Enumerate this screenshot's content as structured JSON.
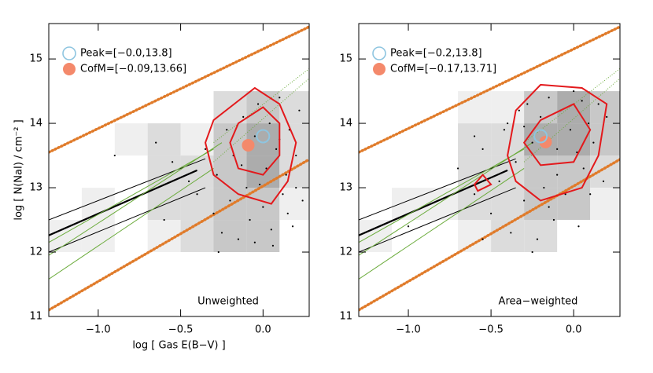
{
  "chart_data": [
    {
      "type": "scatter",
      "xlabel": "log [ Gas E(B−V) ]",
      "ylabel": "log [ N(NaI) / cm⁻² ]",
      "panel_label": "Unweighted",
      "xlim": [
        -1.3,
        0.28
      ],
      "ylim": [
        11,
        15.55
      ],
      "xticks": [
        {
          "value": -1.0,
          "label": "−1.0"
        },
        {
          "value": -0.5,
          "label": "−0.5"
        },
        {
          "value": 0.0,
          "label": "0.0"
        }
      ],
      "yticks": [
        11,
        12,
        13,
        14,
        15
      ],
      "shades": [
        "#efefef",
        "#dcdcdc",
        "#c8c8c8",
        "#acacac"
      ],
      "cells": [
        [
          -0.9,
          13.5,
          1
        ],
        [
          -0.7,
          13.5,
          2
        ],
        [
          -0.7,
          13.0,
          2
        ],
        [
          -0.7,
          12.5,
          2
        ],
        [
          -0.7,
          12.0,
          1
        ],
        [
          -1.1,
          12.5,
          1
        ],
        [
          -0.5,
          13.0,
          2
        ],
        [
          -0.5,
          12.5,
          2
        ],
        [
          -0.5,
          12.0,
          2
        ],
        [
          -0.5,
          13.5,
          1
        ],
        [
          -0.3,
          12.0,
          3
        ],
        [
          -0.3,
          12.5,
          3
        ],
        [
          -0.3,
          13.0,
          3
        ],
        [
          -0.3,
          13.5,
          3
        ],
        [
          -0.3,
          14.0,
          2
        ],
        [
          -0.1,
          12.0,
          3
        ],
        [
          -0.1,
          12.5,
          3
        ],
        [
          -0.1,
          13.0,
          4
        ],
        [
          -0.1,
          13.5,
          4
        ],
        [
          -0.1,
          14.0,
          3
        ],
        [
          0.1,
          12.5,
          1
        ],
        [
          0.1,
          13.0,
          2
        ],
        [
          0.1,
          13.5,
          2
        ],
        [
          0.1,
          14.0,
          2
        ],
        [
          -1.3,
          12.0,
          1
        ],
        [
          -1.1,
          12.0,
          1
        ]
      ],
      "lines": [
        {
          "color": "#e07b2a",
          "style": "dotted",
          "x": [
            -1.3,
            0.28
          ],
          "y": [
            13.55,
            15.5
          ]
        },
        {
          "color": "#e07b2a",
          "style": "dotted",
          "x": [
            -1.3,
            0.28
          ],
          "y": [
            11.1,
            13.44
          ]
        },
        {
          "color": "#000000",
          "style": "thick",
          "x": [
            -1.3,
            -0.4
          ],
          "y": [
            12.26,
            13.27
          ]
        },
        {
          "color": "#000000",
          "style": "thin",
          "x": [
            -1.3,
            -0.35
          ],
          "y": [
            12.5,
            13.45
          ]
        },
        {
          "color": "#000000",
          "style": "thin",
          "x": [
            -1.3,
            -0.35
          ],
          "y": [
            12.0,
            13.0
          ]
        },
        {
          "color": "#6aab3a",
          "style": "thin",
          "x": [
            -1.3,
            -0.3
          ],
          "y": [
            11.58,
            13.3
          ]
        },
        {
          "color": "#6aab3a",
          "style": "thin",
          "x": [
            -1.3,
            -0.25
          ],
          "y": [
            11.95,
            13.7
          ]
        },
        {
          "color": "#6aab3a",
          "style": "thin",
          "x": [
            -1.3,
            -0.3
          ],
          "y": [
            12.15,
            13.6
          ]
        },
        {
          "color": "#6aab3a",
          "style": "dotted-thin",
          "x": [
            -0.3,
            0.28
          ],
          "y": [
            13.7,
            14.85
          ]
        },
        {
          "color": "#6aab3a",
          "style": "dotted-thin",
          "x": [
            -0.3,
            0.28
          ],
          "y": [
            13.4,
            14.7
          ]
        }
      ],
      "points": {
        "color": "#000000",
        "x": [
          -0.55,
          -0.45,
          -0.4,
          -0.35,
          -0.3,
          -0.28,
          -0.25,
          -0.22,
          -0.2,
          -0.18,
          -0.15,
          -0.12,
          -0.1,
          -0.08,
          -0.05,
          -0.03,
          0.0,
          0.02,
          0.04,
          0.06,
          0.08,
          0.1,
          0.12,
          0.14,
          0.16,
          0.18,
          0.2,
          0.22,
          0.24,
          -0.65,
          -0.9,
          -0.27,
          0.05,
          -0.02,
          0.1,
          -0.13,
          0.15,
          -0.6,
          0.2,
          -0.05
        ],
        "y": [
          13.4,
          13.1,
          12.9,
          13.6,
          12.6,
          13.2,
          12.3,
          13.9,
          12.8,
          13.5,
          12.2,
          14.1,
          13.0,
          12.5,
          13.8,
          14.3,
          12.7,
          13.3,
          14.0,
          12.1,
          13.6,
          14.4,
          12.9,
          13.2,
          13.9,
          12.4,
          13.5,
          14.2,
          12.8,
          13.7,
          13.5,
          12.0,
          12.35,
          13.05,
          13.75,
          13.35,
          12.6,
          12.5,
          13.0,
          12.15
        ]
      },
      "contours": [
        {
          "color": "#e3191c",
          "x": [
            -0.35,
            -0.3,
            -0.15,
            -0.05,
            0.1,
            0.2,
            0.15,
            0.05,
            -0.15,
            -0.3
          ],
          "y": [
            13.7,
            14.05,
            14.35,
            14.55,
            14.3,
            13.7,
            13.1,
            12.75,
            12.9,
            13.2
          ]
        },
        {
          "color": "#e3191c",
          "x": [
            -0.2,
            -0.15,
            0.0,
            0.1,
            0.1,
            0.0,
            -0.15
          ],
          "y": [
            13.7,
            14.0,
            14.25,
            14.0,
            13.5,
            13.2,
            13.3
          ]
        }
      ],
      "legend": [
        {
          "label": "Peak=[−0.0,13.8]",
          "marker": "open",
          "color": "#8ec5e0"
        },
        {
          "label": "CofM=[−0.09,13.66]",
          "marker": "filled",
          "color": "#f4896b"
        }
      ],
      "peak": {
        "x": 0.0,
        "y": 13.8
      },
      "cofm": {
        "x": -0.09,
        "y": 13.66
      }
    },
    {
      "type": "scatter",
      "panel_label": "Area−weighted",
      "xlim": [
        -1.3,
        0.28
      ],
      "ylim": [
        11,
        15.55
      ],
      "xticks": [
        {
          "value": -1.0,
          "label": "−1.0"
        },
        {
          "value": -0.5,
          "label": "−0.5"
        },
        {
          "value": 0.0,
          "label": "0.0"
        }
      ],
      "yticks": [
        11,
        12,
        13,
        14,
        15
      ],
      "shades": [
        "#efefef",
        "#dcdcdc",
        "#c8c8c8",
        "#acacac"
      ],
      "cells": [
        [
          -0.9,
          12.5,
          1
        ],
        [
          -0.7,
          12.0,
          1
        ],
        [
          -0.7,
          12.5,
          2
        ],
        [
          -0.7,
          13.0,
          2
        ],
        [
          -0.7,
          13.5,
          2
        ],
        [
          -0.7,
          14.0,
          1
        ],
        [
          -0.5,
          12.0,
          2
        ],
        [
          -0.5,
          12.5,
          2
        ],
        [
          -0.5,
          13.0,
          2
        ],
        [
          -0.5,
          13.5,
          2
        ],
        [
          -0.5,
          14.0,
          1
        ],
        [
          -0.3,
          12.0,
          2
        ],
        [
          -0.3,
          12.5,
          3
        ],
        [
          -0.3,
          13.0,
          3
        ],
        [
          -0.3,
          13.5,
          4
        ],
        [
          -0.3,
          14.0,
          3
        ],
        [
          -0.1,
          12.5,
          3
        ],
        [
          -0.1,
          13.0,
          3
        ],
        [
          -0.1,
          13.5,
          4
        ],
        [
          -0.1,
          14.0,
          4
        ],
        [
          0.1,
          13.5,
          3
        ],
        [
          0.1,
          14.0,
          3
        ],
        [
          0.1,
          13.0,
          2
        ],
        [
          -1.1,
          12.5,
          1
        ],
        [
          -1.3,
          12.0,
          1
        ],
        [
          0.1,
          12.5,
          1
        ]
      ],
      "lines": [
        {
          "color": "#e07b2a",
          "style": "dotted",
          "x": [
            -1.3,
            0.28
          ],
          "y": [
            13.55,
            15.5
          ]
        },
        {
          "color": "#e07b2a",
          "style": "dotted",
          "x": [
            -1.3,
            0.28
          ],
          "y": [
            11.1,
            13.44
          ]
        },
        {
          "color": "#000000",
          "style": "thick",
          "x": [
            -1.3,
            -0.4
          ],
          "y": [
            12.26,
            13.27
          ]
        },
        {
          "color": "#000000",
          "style": "thin",
          "x": [
            -1.3,
            -0.35
          ],
          "y": [
            12.5,
            13.45
          ]
        },
        {
          "color": "#000000",
          "style": "thin",
          "x": [
            -1.3,
            -0.35
          ],
          "y": [
            12.0,
            13.0
          ]
        },
        {
          "color": "#6aab3a",
          "style": "thin",
          "x": [
            -1.3,
            -0.3
          ],
          "y": [
            11.58,
            13.3
          ]
        },
        {
          "color": "#6aab3a",
          "style": "thin",
          "x": [
            -1.3,
            -0.25
          ],
          "y": [
            11.95,
            13.7
          ]
        },
        {
          "color": "#6aab3a",
          "style": "thin",
          "x": [
            -1.3,
            -0.3
          ],
          "y": [
            12.15,
            13.6
          ]
        },
        {
          "color": "#6aab3a",
          "style": "dotted-thin",
          "x": [
            -0.3,
            0.28
          ],
          "y": [
            13.7,
            14.85
          ]
        },
        {
          "color": "#6aab3a",
          "style": "dotted-thin",
          "x": [
            -0.3,
            0.28
          ],
          "y": [
            13.4,
            14.7
          ]
        }
      ],
      "points": {
        "color": "#000000",
        "x": [
          -0.7,
          -0.6,
          -0.55,
          -0.5,
          -0.45,
          -0.4,
          -0.38,
          -0.35,
          -0.3,
          -0.28,
          -0.25,
          -0.22,
          -0.2,
          -0.18,
          -0.15,
          -0.12,
          -0.1,
          -0.08,
          -0.05,
          -0.02,
          0.0,
          0.03,
          0.06,
          0.09,
          0.12,
          0.15,
          0.18,
          0.2,
          -0.33,
          -0.6,
          -1.0,
          -0.25,
          -0.1,
          0.02,
          -0.42,
          -0.15,
          0.1,
          -0.55,
          0.05,
          -0.3
        ],
        "y": [
          13.3,
          12.9,
          13.6,
          12.6,
          13.1,
          14.0,
          12.3,
          13.4,
          12.8,
          14.3,
          13.7,
          12.2,
          14.1,
          13.0,
          14.4,
          12.5,
          13.6,
          14.2,
          12.9,
          13.9,
          14.5,
          12.4,
          13.3,
          14.0,
          13.7,
          14.3,
          13.1,
          14.1,
          14.2,
          13.8,
          12.4,
          12.0,
          13.2,
          13.55,
          13.9,
          12.7,
          12.9,
          12.2,
          14.35,
          13.95
        ]
      },
      "contours": [
        {
          "color": "#e3191c",
          "x": [
            -0.4,
            -0.35,
            -0.2,
            0.05,
            0.2,
            0.15,
            0.05,
            -0.2,
            -0.35
          ],
          "y": [
            13.5,
            14.2,
            14.6,
            14.55,
            14.3,
            13.5,
            13.0,
            12.8,
            13.1
          ]
        },
        {
          "color": "#e3191c",
          "x": [
            -0.3,
            -0.2,
            0.0,
            0.1,
            0.0,
            -0.2
          ],
          "y": [
            13.7,
            14.05,
            14.3,
            13.9,
            13.4,
            13.35
          ]
        },
        {
          "color": "#e3191c",
          "x": [
            -0.6,
            -0.55,
            -0.5,
            -0.58
          ],
          "y": [
            13.05,
            13.2,
            13.05,
            12.95
          ]
        }
      ],
      "legend": [
        {
          "label": "Peak=[−0.2,13.8]",
          "marker": "open",
          "color": "#8ec5e0"
        },
        {
          "label": "CofM=[−0.17,13.71]",
          "marker": "filled",
          "color": "#f4896b"
        }
      ],
      "peak": {
        "x": -0.2,
        "y": 13.8
      },
      "cofm": {
        "x": -0.17,
        "y": 13.71
      }
    }
  ]
}
